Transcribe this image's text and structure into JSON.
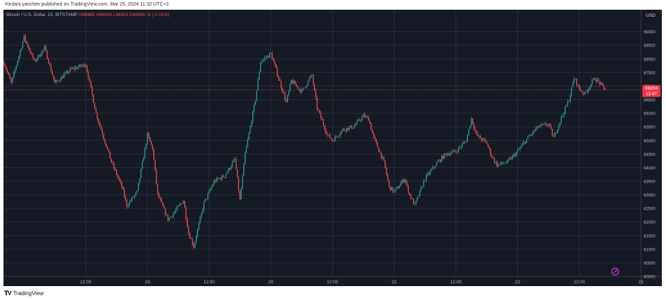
{
  "publication": {
    "text": "YordanLyanchev published on TradingView.com, Mar 25, 2024 11:32 UTC+2"
  },
  "footer": {
    "brand": "TradingView",
    "logo_icon": "tradingview-logo-icon"
  },
  "colors": {
    "background": "#161a25",
    "grid": "#2a2e39",
    "up": "#26a69a",
    "down": "#ef5350",
    "text": "#b2b5be",
    "price_label_bg": "#f23645"
  },
  "chart_data": {
    "type": "candlestick",
    "legend": {
      "symbol": "Bitcoin / U.S. Dollar, 15, BITSTAMP",
      "open": "O66885",
      "high": "H66943",
      "low": "L66853",
      "close": "C66856",
      "change": "-9 (-0.01%)"
    },
    "currency_label": "USD",
    "y_ticks": [
      60000,
      60500,
      61000,
      61500,
      62000,
      62500,
      63000,
      63500,
      64000,
      64500,
      65000,
      65500,
      66000,
      66500,
      67000,
      67500,
      68000,
      68500,
      69000
    ],
    "y_range": [
      60000,
      69400
    ],
    "x_ticks": [
      "12:00",
      "19",
      "12:00",
      "20",
      "12:00",
      "21",
      "12:00",
      "22",
      "12:00",
      "23",
      "12:00",
      "24",
      "12:00",
      "25",
      "12:00"
    ],
    "x_range_hours": [
      -16,
      108
    ],
    "last_price": {
      "value": 66856,
      "label": "66856",
      "countdown": "12:47"
    },
    "dashed_line_value": 66856,
    "anchors": [
      [
        -16,
        67900
      ],
      [
        -14.5,
        67100
      ],
      [
        -12,
        68800
      ],
      [
        -10,
        67900
      ],
      [
        -8,
        68400
      ],
      [
        -6,
        67100
      ],
      [
        -3,
        67600
      ],
      [
        0,
        67800
      ],
      [
        2,
        66000
      ],
      [
        3,
        65400
      ],
      [
        5,
        64200
      ],
      [
        7,
        63300
      ],
      [
        8,
        62600
      ],
      [
        10,
        63100
      ],
      [
        12,
        65200
      ],
      [
        13,
        64700
      ],
      [
        14,
        63000
      ],
      [
        16,
        62100
      ],
      [
        17,
        62300
      ],
      [
        19,
        62800
      ],
      [
        20,
        61600
      ],
      [
        21,
        61100
      ],
      [
        23,
        62700
      ],
      [
        25,
        63500
      ],
      [
        27,
        63700
      ],
      [
        29,
        64300
      ],
      [
        30,
        62800
      ],
      [
        31,
        64500
      ],
      [
        33,
        66500
      ],
      [
        34,
        67900
      ],
      [
        36,
        68200
      ],
      [
        37,
        67600
      ],
      [
        39,
        66400
      ],
      [
        40,
        67200
      ],
      [
        42,
        66800
      ],
      [
        44,
        67400
      ],
      [
        45,
        66200
      ],
      [
        47,
        65200
      ],
      [
        48,
        65000
      ],
      [
        50,
        65400
      ],
      [
        52,
        65500
      ],
      [
        54,
        65900
      ],
      [
        55,
        65800
      ],
      [
        56,
        65100
      ],
      [
        58,
        64200
      ],
      [
        59,
        63300
      ],
      [
        60,
        63100
      ],
      [
        62,
        63600
      ],
      [
        63,
        63000
      ],
      [
        64,
        62600
      ],
      [
        66,
        63600
      ],
      [
        68,
        64100
      ],
      [
        70,
        64500
      ],
      [
        72,
        64600
      ],
      [
        74,
        65000
      ],
      [
        75,
        65800
      ],
      [
        76,
        65200
      ],
      [
        78,
        64900
      ],
      [
        79,
        64400
      ],
      [
        80,
        64100
      ],
      [
        82,
        64200
      ],
      [
        84,
        64600
      ],
      [
        86,
        65100
      ],
      [
        88,
        65500
      ],
      [
        90,
        65600
      ],
      [
        91,
        65100
      ],
      [
        92,
        65600
      ],
      [
        94,
        66500
      ],
      [
        95,
        67300
      ],
      [
        96,
        66900
      ],
      [
        97,
        66700
      ],
      [
        99,
        67300
      ],
      [
        100,
        67100
      ],
      [
        101,
        66856
      ]
    ]
  }
}
